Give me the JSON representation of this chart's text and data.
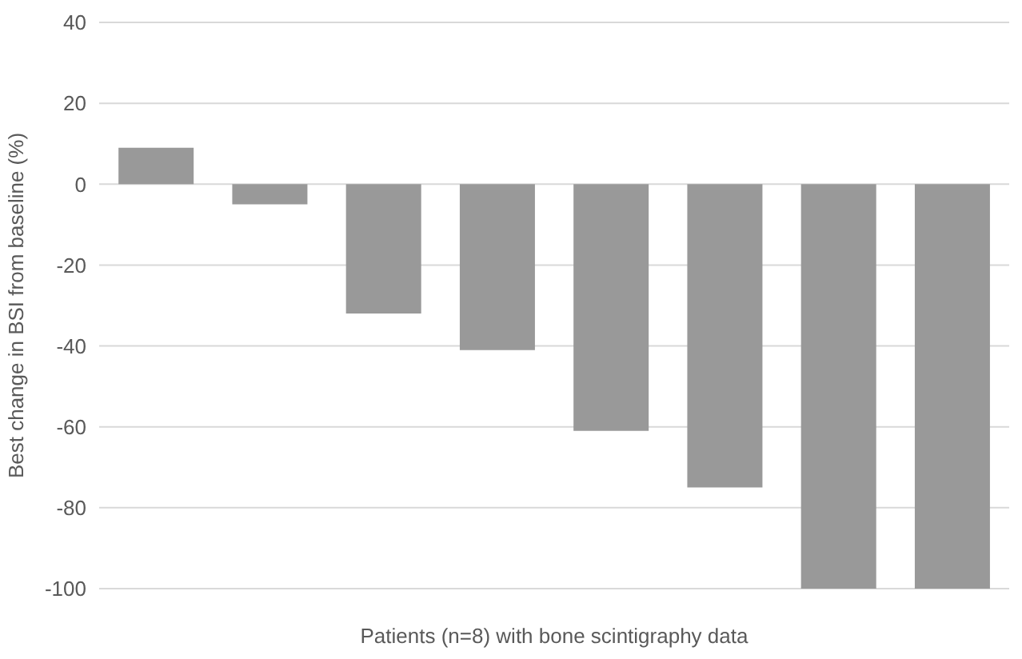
{
  "chart_data": {
    "type": "bar",
    "xlabel": "Patients (n=8) with bone scintigraphy data",
    "ylabel": "Best change in BSI from baseline (%)",
    "categories": [
      null,
      null,
      null,
      null,
      null,
      null,
      null,
      null
    ],
    "values": [
      9,
      -5,
      -32,
      -41,
      -61,
      -75,
      -100,
      -100
    ],
    "color": "#999999",
    "ylim": [
      -100,
      40
    ],
    "yticks": [
      -100,
      -80,
      -60,
      -40,
      -20,
      0,
      20,
      40
    ],
    "grid": "y",
    "tick_labels": "y"
  }
}
